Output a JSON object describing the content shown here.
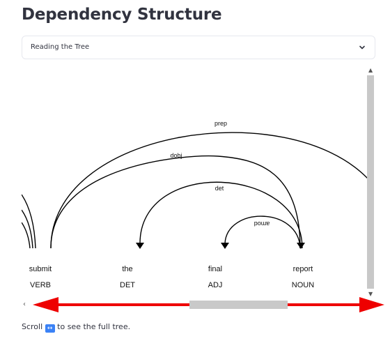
{
  "page": {
    "title": "Dependency Structure"
  },
  "expander": {
    "label": "Reading the Tree",
    "icon": "chevron-down-icon"
  },
  "tree": {
    "tokens": [
      {
        "text": "submit",
        "tag": "VERB"
      },
      {
        "text": "the",
        "tag": "DET"
      },
      {
        "text": "final",
        "tag": "ADJ"
      },
      {
        "text": "report",
        "tag": "NOUN"
      }
    ],
    "arcs": [
      {
        "label": "prep",
        "head": "submit",
        "dependent": "(offscreen right)"
      },
      {
        "label": "dobj",
        "head": "submit",
        "dependent": "report"
      },
      {
        "label": "det",
        "head": "report",
        "dependent": "the"
      },
      {
        "label": "amod",
        "head": "report",
        "dependent": "final"
      }
    ]
  },
  "caption": {
    "prefix": "Scroll",
    "emoji": "↔",
    "suffix": "to see the full tree."
  },
  "colors": {
    "annotation_arrows": "#ee0000",
    "text": "#31333f",
    "border": "#e6e8ee",
    "scrollbar": "#c8c8c8"
  }
}
